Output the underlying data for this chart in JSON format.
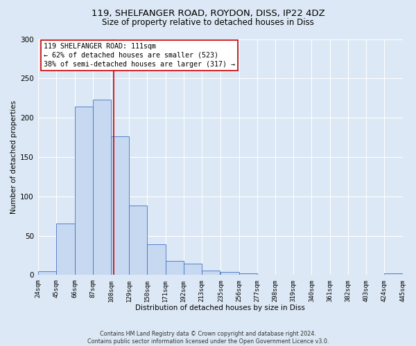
{
  "title_line1": "119, SHELFANGER ROAD, ROYDON, DISS, IP22 4DZ",
  "title_line2": "Size of property relative to detached houses in Diss",
  "xlabel": "Distribution of detached houses by size in Diss",
  "ylabel": "Number of detached properties",
  "bin_edges": [
    24,
    45,
    66,
    87,
    108,
    129,
    150,
    171,
    192,
    213,
    235,
    256,
    277,
    298,
    319,
    340,
    361,
    382,
    403,
    424,
    445
  ],
  "bar_heights": [
    5,
    65,
    214,
    223,
    176,
    88,
    39,
    18,
    14,
    6,
    4,
    2,
    0,
    0,
    0,
    0,
    0,
    0,
    0,
    2
  ],
  "bar_color": "#c6d9f0",
  "bar_edge_color": "#4472c4",
  "property_size": 111,
  "vline_color": "#cc0000",
  "annotation_text_line1": "119 SHELFANGER ROAD: 111sqm",
  "annotation_text_line2": "← 62% of detached houses are smaller (523)",
  "annotation_text_line3": "38% of semi-detached houses are larger (317) →",
  "annotation_box_facecolor": "#ffffff",
  "annotation_box_edgecolor": "#cc0000",
  "ylim": [
    0,
    300
  ],
  "yticks": [
    0,
    50,
    100,
    150,
    200,
    250,
    300
  ],
  "background_color": "#dce8f5",
  "grid_color": "#ffffff",
  "footer_line1": "Contains HM Land Registry data © Crown copyright and database right 2024.",
  "footer_line2": "Contains public sector information licensed under the Open Government Licence v3.0.",
  "title1_fontsize": 9.5,
  "title2_fontsize": 8.5,
  "ylabel_fontsize": 7.5,
  "xlabel_fontsize": 7.5,
  "ytick_fontsize": 7.5,
  "xtick_fontsize": 6.5,
  "annotation_fontsize": 7.2,
  "footer_fontsize": 5.8
}
